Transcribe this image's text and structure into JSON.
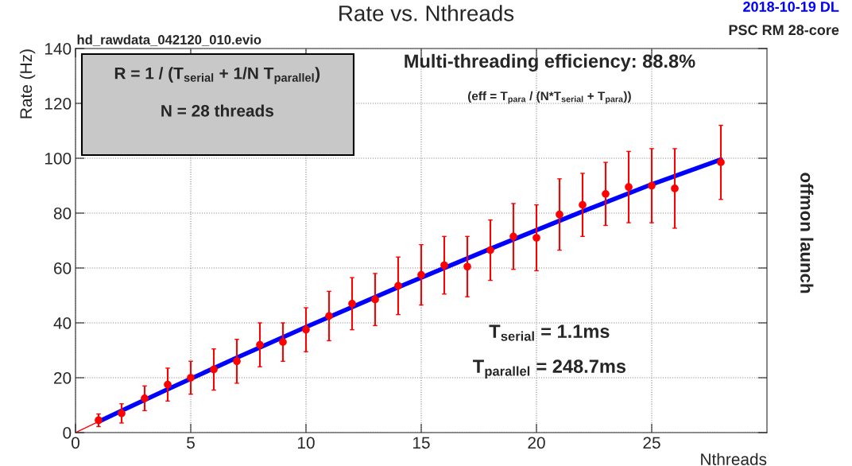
{
  "chart_data": {
    "type": "scatter",
    "title": "Rate vs. Nthreads",
    "xlabel": "Nthreads",
    "ylabel": "Rate (Hz)",
    "xlim": [
      0,
      30
    ],
    "ylim": [
      0,
      140
    ],
    "xticks": [
      0,
      5,
      10,
      15,
      20,
      25
    ],
    "yticks": [
      0,
      20,
      40,
      60,
      80,
      100,
      120,
      140
    ],
    "grid": true,
    "series": [
      {
        "marker": "circle",
        "color": "#ff0000",
        "x": [
          1,
          2,
          3,
          4,
          5,
          6,
          7,
          8,
          9,
          10,
          11,
          12,
          13,
          14,
          15,
          16,
          17,
          18,
          19,
          20,
          21,
          22,
          23,
          24,
          25,
          26,
          28
        ],
        "values": [
          4.5,
          7,
          12.5,
          17.5,
          20,
          23,
          26,
          32,
          33,
          37.5,
          42.5,
          47,
          48.5,
          53.5,
          57.5,
          61,
          60.5,
          66.5,
          71.5,
          71,
          79.5,
          83,
          87,
          89.5,
          90,
          89,
          98.5
        ],
        "errors": [
          2.3,
          3.5,
          4.5,
          6,
          6,
          7.5,
          8,
          8,
          7,
          8,
          9,
          9.5,
          9.5,
          10.5,
          11,
          10.5,
          11,
          11,
          12,
          12,
          13,
          11.5,
          11.5,
          13,
          13.5,
          14.5,
          13.5
        ]
      },
      {
        "type": "line",
        "color": "#0000ff",
        "x": [
          1,
          2,
          4,
          7,
          10,
          14,
          18,
          22,
          25,
          28
        ],
        "values": [
          4,
          8,
          15.8,
          27.3,
          38.5,
          53,
          67,
          80.6,
          90.5,
          99.5
        ]
      },
      {
        "type": "line",
        "color": "#ff0000",
        "x": [
          0,
          1
        ],
        "values": [
          0,
          4
        ]
      }
    ],
    "annotations": [
      "hd_rawdata_042120_010.evio",
      "2018-10-19 DL",
      "PSC RM 28-core",
      "R = 1 / (T$_{serial}$ + 1/N T$_{parallel}$)\n\nN = 28 threads",
      "Multi-threading efficiency: 88.8%",
      "(eff = T$_{para}$ / (N*T$_{serial}$ + T$_{para}$))",
      "T$_{serial}$ = 1.1ms",
      "T$_{parallel}$ = 248.7ms",
      "offmon launch"
    ]
  }
}
